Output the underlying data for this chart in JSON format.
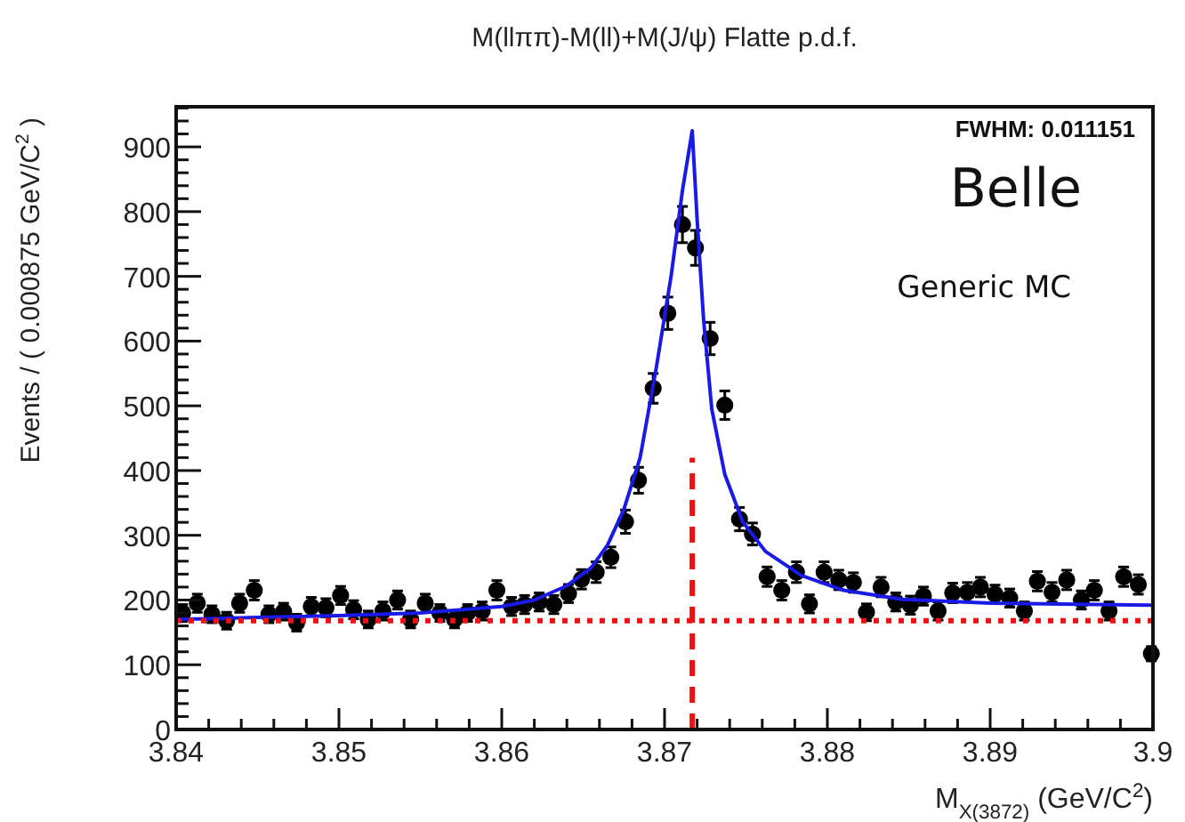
{
  "chart_data": {
    "type": "scatter",
    "title": "M(llππ)-M(ll)+M(J/ψ) Flatte p.d.f.",
    "xlabel": "M$_{X(3872)}$ (GeV/C$^{2}$)",
    "ylabel": "Events / ( 0.000875 GeV/C$^{2}$ )",
    "annotations": [
      "FWHM: 0.011151",
      "Belle",
      "Generic MC"
    ],
    "xlim": [
      3.84,
      3.9
    ],
    "ylim": [
      0,
      962
    ],
    "xticks": [
      3.84,
      {
        "value": 3.842,
        "label": null
      },
      {
        "value": 3.844,
        "label": null
      },
      {
        "value": 3.846,
        "label": null
      },
      {
        "value": 3.848,
        "label": null
      },
      3.85,
      {
        "value": 3.852,
        "label": null
      },
      {
        "value": 3.854,
        "label": null
      },
      {
        "value": 3.856,
        "label": null
      },
      {
        "value": 3.858,
        "label": null
      },
      3.86,
      {
        "value": 3.862,
        "label": null
      },
      {
        "value": 3.864,
        "label": null
      },
      {
        "value": 3.866,
        "label": null
      },
      {
        "value": 3.868,
        "label": null
      },
      3.87,
      {
        "value": 3.872,
        "label": null
      },
      {
        "value": 3.874,
        "label": null
      },
      {
        "value": 3.876,
        "label": null
      },
      {
        "value": 3.878,
        "label": null
      },
      3.88,
      {
        "value": 3.882,
        "label": null
      },
      {
        "value": 3.884,
        "label": null
      },
      {
        "value": 3.886,
        "label": null
      },
      {
        "value": 3.888,
        "label": null
      },
      3.89,
      {
        "value": 3.892,
        "label": null
      },
      {
        "value": 3.894,
        "label": null
      },
      {
        "value": 3.896,
        "label": null
      },
      {
        "value": 3.898,
        "label": null
      },
      3.9
    ],
    "yticks": [
      0,
      {
        "value": 20,
        "label": null
      },
      {
        "value": 40,
        "label": null
      },
      {
        "value": 60,
        "label": null
      },
      {
        "value": 80,
        "label": null
      },
      100,
      {
        "value": 120,
        "label": null
      },
      {
        "value": 140,
        "label": null
      },
      {
        "value": 160,
        "label": null
      },
      {
        "value": 180,
        "label": null
      },
      200,
      {
        "value": 220,
        "label": null
      },
      {
        "value": 240,
        "label": null
      },
      {
        "value": 260,
        "label": null
      },
      {
        "value": 280,
        "label": null
      },
      300,
      {
        "value": 320,
        "label": null
      },
      {
        "value": 340,
        "label": null
      },
      {
        "value": 360,
        "label": null
      },
      {
        "value": 380,
        "label": null
      },
      400,
      {
        "value": 420,
        "label": null
      },
      {
        "value": 440,
        "label": null
      },
      {
        "value": 460,
        "label": null
      },
      {
        "value": 480,
        "label": null
      },
      500,
      {
        "value": 520,
        "label": null
      },
      {
        "value": 540,
        "label": null
      },
      {
        "value": 560,
        "label": null
      },
      {
        "value": 580,
        "label": null
      },
      600,
      {
        "value": 620,
        "label": null
      },
      {
        "value": 640,
        "label": null
      },
      {
        "value": 660,
        "label": null
      },
      {
        "value": 680,
        "label": null
      },
      700,
      {
        "value": 720,
        "label": null
      },
      {
        "value": 740,
        "label": null
      },
      {
        "value": 760,
        "label": null
      },
      {
        "value": 780,
        "label": null
      },
      800,
      {
        "value": 820,
        "label": null
      },
      {
        "value": 840,
        "label": null
      },
      {
        "value": 860,
        "label": null
      },
      {
        "value": 880,
        "label": null
      },
      900,
      {
        "value": 920,
        "label": null
      },
      {
        "value": 940,
        "label": null
      },
      {
        "value": 960,
        "label": null
      }
    ],
    "grid": false,
    "series": [
      {
        "color": "#000000",
        "marker": "circle",
        "x": [
          3.8404,
          3.8413,
          3.8422,
          3.8431,
          3.8439,
          3.8448,
          3.8457,
          3.8466,
          3.8474,
          3.8483,
          3.8492,
          3.8501,
          3.8509,
          3.8518,
          3.8527,
          3.8536,
          3.8544,
          3.8553,
          3.8562,
          3.8571,
          3.8579,
          3.8588,
          3.8597,
          3.8606,
          3.8614,
          3.8623,
          3.8632,
          3.8641,
          3.8649,
          3.8658,
          3.8667,
          3.8676,
          3.8684,
          3.8693,
          3.8702,
          3.8711,
          3.8719,
          3.8728,
          3.8737,
          3.8746,
          3.8754,
          3.8763,
          3.8772,
          3.8781,
          3.8789,
          3.8798,
          3.8807,
          3.8816,
          3.8824,
          3.8833,
          3.8842,
          3.8851,
          3.8859,
          3.8868,
          3.8877,
          3.8886,
          3.8894,
          3.8903,
          3.8912,
          3.8921,
          3.8929,
          3.8938,
          3.8947,
          3.8956,
          3.8964,
          3.8973,
          3.8982,
          3.8991,
          3.8999
        ],
        "values": [
          180,
          195,
          178,
          168,
          195,
          215,
          178,
          182,
          165,
          190,
          188,
          207,
          185,
          170,
          183,
          200,
          170,
          195,
          180,
          170,
          180,
          183,
          215,
          190,
          193,
          197,
          193,
          210,
          232,
          243,
          266,
          321,
          385,
          527,
          643,
          780,
          744,
          604,
          501,
          325,
          302,
          236,
          215,
          243,
          194,
          243,
          231,
          227,
          181,
          220,
          197,
          192,
          206,
          183,
          211,
          212,
          220,
          209,
          203,
          183,
          229,
          212,
          231,
          200,
          215,
          183,
          236,
          224,
          117
        ],
        "errors": [
          13,
          14,
          13,
          13,
          14,
          15,
          13,
          13,
          13,
          14,
          14,
          14,
          14,
          13,
          14,
          14,
          13,
          14,
          13,
          13,
          13,
          14,
          15,
          14,
          14,
          14,
          14,
          14,
          15,
          16,
          16,
          18,
          20,
          23,
          25,
          28,
          27,
          25,
          22,
          18,
          17,
          15,
          15,
          16,
          14,
          16,
          15,
          15,
          13,
          15,
          14,
          14,
          14,
          14,
          15,
          15,
          15,
          14,
          14,
          14,
          15,
          15,
          15,
          14,
          15,
          14,
          15,
          15,
          11
        ]
      },
      {
        "type": "line",
        "color": "#1a1ae6",
        "line_style": "solid",
        "x": [
          3.84,
          3.845,
          3.85,
          3.855,
          3.86,
          3.862,
          3.864,
          3.8655,
          3.8665,
          3.8675,
          3.8685,
          3.8695,
          3.8704,
          3.8711,
          3.8717,
          3.872,
          3.8724,
          3.8729,
          3.8737,
          3.8748,
          3.8762,
          3.8784,
          3.881,
          3.8846,
          3.89,
          3.9
        ],
        "values": [
          170,
          173,
          176,
          180,
          190,
          200,
          222,
          250,
          285,
          340,
          420,
          560,
          700,
          833,
          925,
          788,
          632,
          495,
          394,
          321,
          275,
          238,
          215,
          201,
          195,
          192
        ]
      },
      {
        "type": "line",
        "color": "#ee1111",
        "line_style": "dotted",
        "x": [
          3.84,
          3.9
        ],
        "values": [
          168,
          168
        ]
      },
      {
        "type": "line",
        "color": "#ee1111",
        "line_style": "dashed",
        "x": [
          3.8717,
          3.8717
        ],
        "values": [
          0,
          420
        ]
      }
    ]
  }
}
